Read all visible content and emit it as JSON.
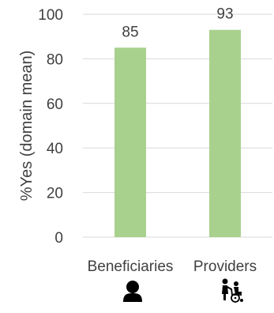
{
  "chart_data": {
    "type": "bar",
    "categories": [
      "Beneficiaries",
      "Providers"
    ],
    "values": [
      85,
      93
    ],
    "data_labels": [
      "85",
      "93"
    ],
    "title": "",
    "xlabel": "",
    "ylabel": "%Yes (domain mean)",
    "ylim": [
      0,
      100
    ],
    "yticks": [
      "0",
      "20",
      "40",
      "60",
      "80",
      "100"
    ],
    "grid": true,
    "legend": "none",
    "bar_color": "#a9d18e",
    "grid_color": "#d9d9d9",
    "text_color": "#404040",
    "category_icons": [
      "person-icon",
      "wheelchair-caregiver-icon"
    ]
  }
}
